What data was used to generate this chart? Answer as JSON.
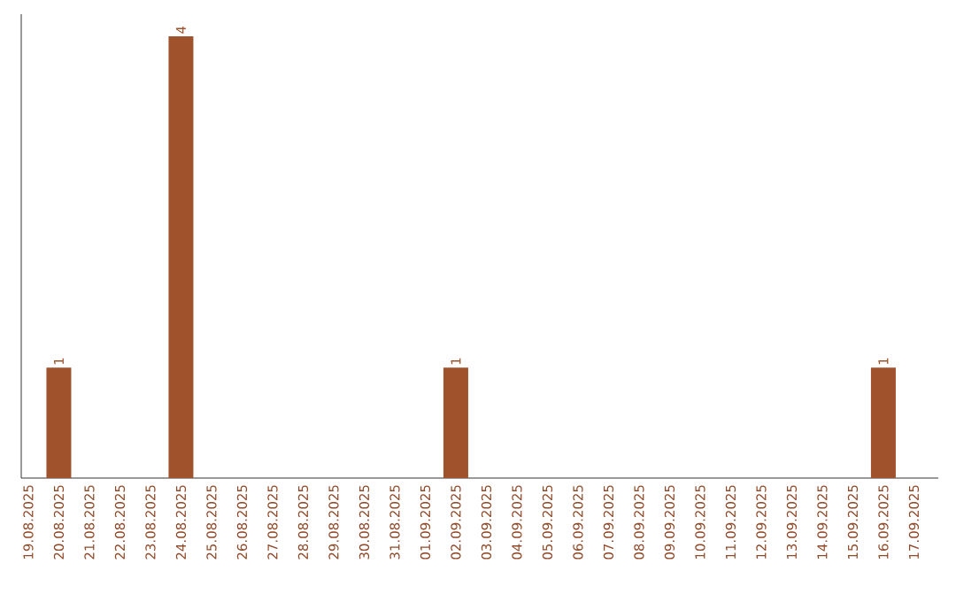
{
  "chart_data": {
    "type": "bar",
    "categories": [
      "19.08.2025",
      "20.08.2025",
      "21.08.2025",
      "22.08.2025",
      "23.08.2025",
      "24.08.2025",
      "25.08.2025",
      "26.08.2025",
      "27.08.2025",
      "28.08.2025",
      "29.08.2025",
      "30.08.2025",
      "31.08.2025",
      "01.09.2025",
      "02.09.2025",
      "03.09.2025",
      "04.09.2025",
      "05.09.2025",
      "06.09.2025",
      "07.09.2025",
      "08.09.2025",
      "09.09.2025",
      "10.09.2025",
      "11.09.2025",
      "12.09.2025",
      "13.09.2025",
      "14.09.2025",
      "15.09.2025",
      "16.09.2025",
      "17.09.2025"
    ],
    "values": [
      0,
      1,
      0,
      0,
      0,
      4,
      0,
      0,
      0,
      0,
      0,
      0,
      0,
      0,
      1,
      0,
      0,
      0,
      0,
      0,
      0,
      0,
      0,
      0,
      0,
      0,
      0,
      0,
      1,
      0
    ],
    "value_labels": [
      null,
      "1",
      null,
      null,
      null,
      "4",
      null,
      null,
      null,
      null,
      null,
      null,
      null,
      null,
      "1",
      null,
      null,
      null,
      null,
      null,
      null,
      null,
      null,
      null,
      null,
      null,
      null,
      null,
      "1",
      null
    ],
    "color": "#a0522d",
    "ylim": [
      0,
      4.2
    ],
    "tick_labels": "x"
  }
}
